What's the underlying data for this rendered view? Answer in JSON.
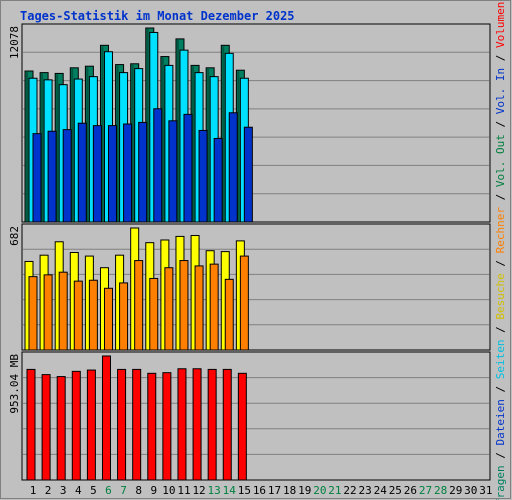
{
  "title": "Tages-Statistik im Monat Dezember 2025",
  "colors": {
    "background": "#C0C0C0",
    "title": "#0033CC",
    "anfragen": "#008060",
    "dateien": "#00E0FF",
    "seiten": "#0033CC",
    "besuche": "#FFFF00",
    "rechner": "#FF8000",
    "volumen": "#FF0000",
    "weekend": "#008040",
    "weekday": "#000000",
    "grid": "#808080"
  },
  "legend_right": [
    {
      "text": "Anfragen",
      "color": "#008060"
    },
    {
      "text": " / ",
      "color": "#000000"
    },
    {
      "text": "Dateien",
      "color": "#0033CC"
    },
    {
      "text": " / ",
      "color": "#000000"
    },
    {
      "text": "Seiten",
      "color": "#00C0E0"
    },
    {
      "text": " / ",
      "color": "#000000"
    },
    {
      "text": "Besuche",
      "color": "#D0C000"
    },
    {
      "text": " / ",
      "color": "#000000"
    },
    {
      "text": "Rechner",
      "color": "#FF8000"
    },
    {
      "text": " / ",
      "color": "#000000"
    },
    {
      "text": "Vol. Out",
      "color": "#008040"
    },
    {
      "text": " / ",
      "color": "#000000"
    },
    {
      "text": "Vol. In",
      "color": "#0033CC"
    },
    {
      "text": " / ",
      "color": "#000000"
    },
    {
      "text": "Volumen",
      "color": "#FF0000"
    }
  ],
  "chart_data": [
    {
      "type": "bar",
      "panel": "top",
      "max_label": "12078",
      "ylim": [
        0,
        12078
      ],
      "categories": [
        "1",
        "2",
        "3",
        "4",
        "5",
        "6",
        "7",
        "8",
        "9",
        "10",
        "11",
        "12",
        "13",
        "14",
        "15",
        "16",
        "17",
        "18",
        "19",
        "20",
        "21",
        "22",
        "23",
        "24",
        "25",
        "26",
        "27",
        "28",
        "29",
        "30",
        "31"
      ],
      "weekend_days": [
        "6",
        "7",
        "13",
        "14",
        "20",
        "21",
        "27",
        "28"
      ],
      "series": [
        {
          "name": "Anfragen",
          "values": [
            9400,
            9300,
            9250,
            9600,
            9700,
            11000,
            9800,
            9850,
            12078,
            10300,
            11400,
            9750,
            9600,
            11000,
            9450,
            0,
            0,
            0,
            0,
            0,
            0,
            0,
            0,
            0,
            0,
            0,
            0,
            0,
            0,
            0,
            0
          ]
        },
        {
          "name": "Dateien",
          "values": [
            8950,
            8850,
            8550,
            8900,
            9050,
            10600,
            9300,
            9550,
            11800,
            9750,
            10700,
            9300,
            9050,
            10500,
            8950,
            0,
            0,
            0,
            0,
            0,
            0,
            0,
            0,
            0,
            0,
            0,
            0,
            0,
            0,
            0,
            0
          ]
        },
        {
          "name": "Seiten",
          "values": [
            5500,
            5650,
            5750,
            6150,
            6000,
            6000,
            6100,
            6200,
            7050,
            6300,
            6700,
            5700,
            5200,
            6800,
            5900,
            0,
            0,
            0,
            0,
            0,
            0,
            0,
            0,
            0,
            0,
            0,
            0,
            0,
            0,
            0,
            0
          ]
        }
      ]
    },
    {
      "type": "bar",
      "panel": "middle",
      "max_label": "682",
      "ylim": [
        0,
        682
      ],
      "categories": [
        "1",
        "2",
        "3",
        "4",
        "5",
        "6",
        "7",
        "8",
        "9",
        "10",
        "11",
        "12",
        "13",
        "14",
        "15",
        "16",
        "17",
        "18",
        "19",
        "20",
        "21",
        "22",
        "23",
        "24",
        "25",
        "26",
        "27",
        "28",
        "29",
        "30",
        "31"
      ],
      "series": [
        {
          "name": "Besuche",
          "values": [
            495,
            530,
            605,
            545,
            525,
            460,
            530,
            682,
            600,
            615,
            635,
            640,
            555,
            550,
            610,
            0,
            0,
            0,
            0,
            0,
            0,
            0,
            0,
            0,
            0,
            0,
            0,
            0,
            0,
            0,
            0
          ]
        },
        {
          "name": "Rechner",
          "values": [
            410,
            420,
            435,
            385,
            390,
            345,
            375,
            500,
            400,
            460,
            500,
            470,
            480,
            395,
            525,
            0,
            0,
            0,
            0,
            0,
            0,
            0,
            0,
            0,
            0,
            0,
            0,
            0,
            0,
            0,
            0
          ]
        }
      ]
    },
    {
      "type": "bar",
      "panel": "bottom",
      "max_label": "953.04 MB",
      "ylim": [
        0,
        953.04
      ],
      "categories": [
        "1",
        "2",
        "3",
        "4",
        "5",
        "6",
        "7",
        "8",
        "9",
        "10",
        "11",
        "12",
        "13",
        "14",
        "15",
        "16",
        "17",
        "18",
        "19",
        "20",
        "21",
        "22",
        "23",
        "24",
        "25",
        "26",
        "27",
        "28",
        "29",
        "30",
        "31"
      ],
      "series": [
        {
          "name": "Volumen",
          "values": [
            850,
            810,
            795,
            835,
            845,
            953.04,
            850,
            850,
            820,
            825,
            855,
            855,
            850,
            850,
            820,
            0,
            0,
            0,
            0,
            0,
            0,
            0,
            0,
            0,
            0,
            0,
            0,
            0,
            0,
            0,
            0
          ]
        }
      ]
    }
  ]
}
